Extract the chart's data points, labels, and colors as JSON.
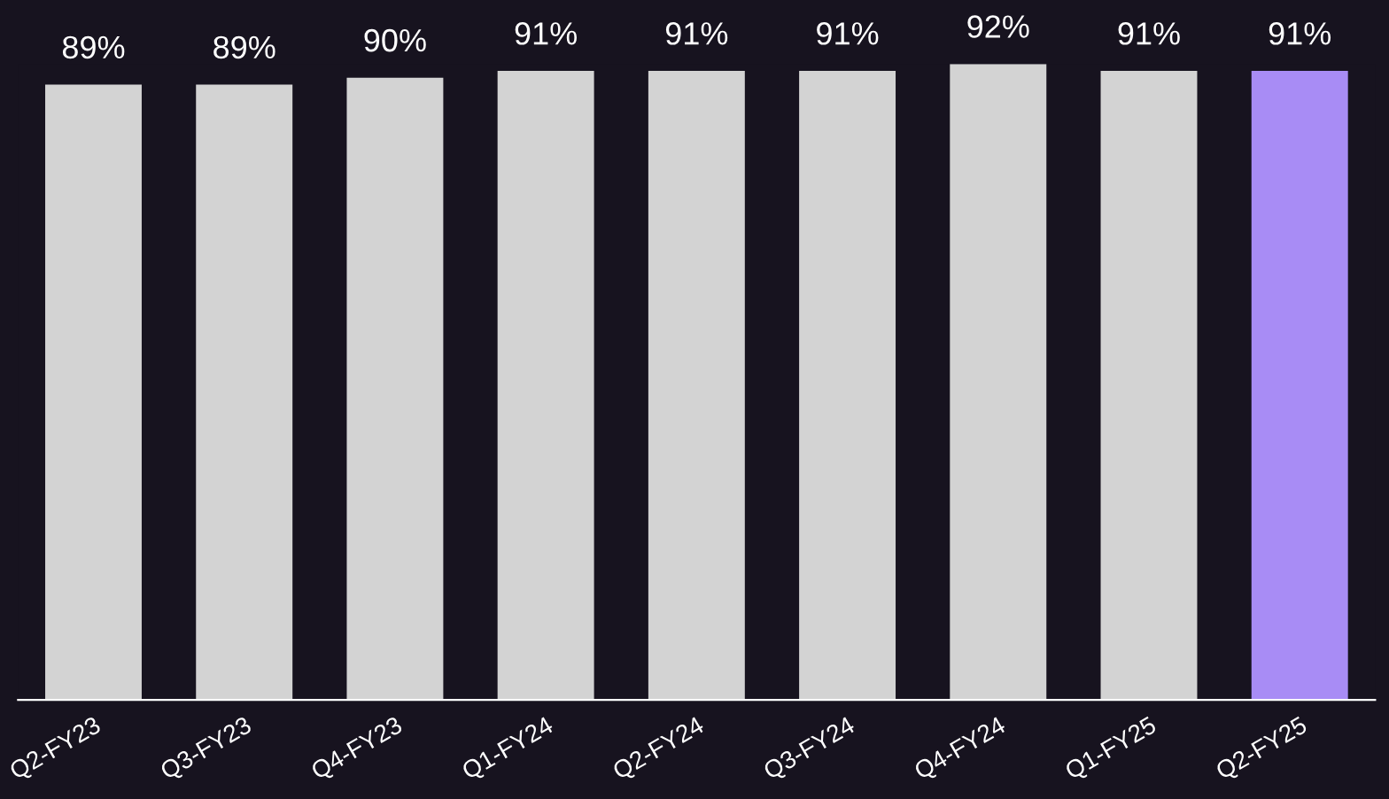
{
  "chart_data": {
    "type": "bar",
    "categories": [
      "Q2-FY23",
      "Q3-FY23",
      "Q4-FY23",
      "Q1-FY24",
      "Q2-FY24",
      "Q3-FY24",
      "Q4-FY24",
      "Q1-FY25",
      "Q2-FY25"
    ],
    "values": [
      89,
      89,
      90,
      91,
      91,
      91,
      92,
      91,
      91
    ],
    "colors": [
      "#d3d3d3",
      "#d3d3d3",
      "#d3d3d3",
      "#d3d3d3",
      "#d3d3d3",
      "#d3d3d3",
      "#d3d3d3",
      "#d3d3d3",
      "#a88cf5"
    ],
    "value_labels": [
      "89%",
      "89%",
      "90%",
      "91%",
      "91%",
      "91%",
      "92%",
      "91%",
      "91%"
    ],
    "grid": false,
    "legend": false,
    "tick_labels": "x"
  }
}
